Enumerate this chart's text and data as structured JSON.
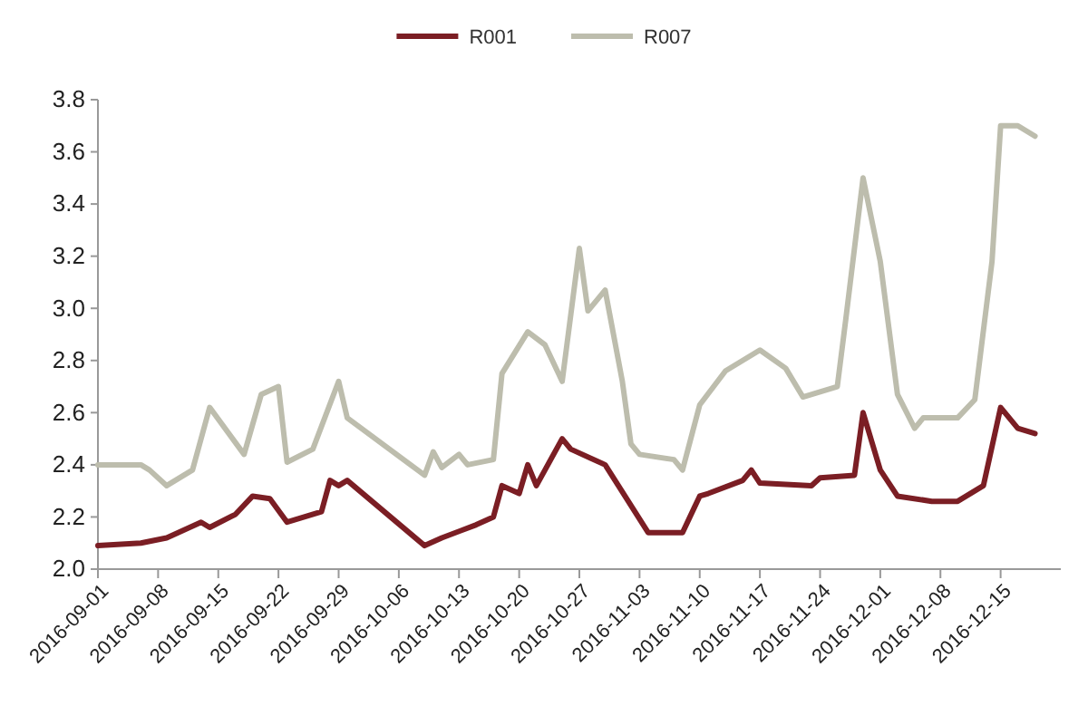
{
  "chart_data": {
    "type": "line",
    "legend": "top",
    "grid": false,
    "marker": "none",
    "line_style": "solid",
    "xlim": [
      "2016-09-01",
      "2016-12-22"
    ],
    "xticks": [
      "2016-09-01",
      "2016-09-08",
      "2016-09-15",
      "2016-09-22",
      "2016-09-29",
      "2016-10-06",
      "2016-10-13",
      "2016-10-20",
      "2016-10-27",
      "2016-11-03",
      "2016-11-10",
      "2016-11-17",
      "2016-11-24",
      "2016-12-01",
      "2016-12-08",
      "2016-12-15"
    ],
    "ylim": [
      2.0,
      3.8
    ],
    "yticks": [
      {
        "value": 2.0,
        "label": "2.0"
      },
      2.2,
      2.4,
      2.6,
      2.8,
      {
        "value": 3.0,
        "label": "3.0"
      },
      3.2,
      3.4,
      3.6,
      3.8
    ],
    "series": [
      {
        "name": "R001",
        "color": "#7b1e24",
        "x": [
          "2016-09-01",
          "2016-09-06",
          "2016-09-09",
          "2016-09-13",
          "2016-09-14",
          "2016-09-17",
          "2016-09-19",
          "2016-09-21",
          "2016-09-23",
          "2016-09-27",
          "2016-09-28",
          "2016-09-29",
          "2016-09-30",
          "2016-10-09",
          "2016-10-11",
          "2016-10-15",
          "2016-10-17",
          "2016-10-18",
          "2016-10-20",
          "2016-10-21",
          "2016-10-22",
          "2016-10-23",
          "2016-10-25",
          "2016-10-26",
          "2016-10-30",
          "2016-11-04",
          "2016-11-08",
          "2016-11-10",
          "2016-11-11",
          "2016-11-15",
          "2016-11-16",
          "2016-11-17",
          "2016-11-23",
          "2016-11-24",
          "2016-11-28",
          "2016-11-29",
          "2016-12-01",
          "2016-12-03",
          "2016-12-07",
          "2016-12-10",
          "2016-12-13",
          "2016-12-15",
          "2016-12-17",
          "2016-12-19"
        ],
        "values": [
          2.09,
          2.1,
          2.12,
          2.18,
          2.16,
          2.21,
          2.28,
          2.27,
          2.18,
          2.22,
          2.34,
          2.32,
          2.34,
          2.09,
          2.12,
          2.17,
          2.2,
          2.32,
          2.29,
          2.4,
          2.32,
          2.38,
          2.5,
          2.46,
          2.4,
          2.14,
          2.14,
          2.28,
          2.29,
          2.34,
          2.38,
          2.33,
          2.32,
          2.35,
          2.36,
          2.6,
          2.38,
          2.28,
          2.26,
          2.26,
          2.32,
          2.62,
          2.54,
          2.52
        ]
      },
      {
        "name": "R007",
        "color": "#bdbdad",
        "x": [
          "2016-09-01",
          "2016-09-06",
          "2016-09-07",
          "2016-09-09",
          "2016-09-12",
          "2016-09-14",
          "2016-09-18",
          "2016-09-20",
          "2016-09-22",
          "2016-09-23",
          "2016-09-26",
          "2016-09-29",
          "2016-09-30",
          "2016-10-09",
          "2016-10-10",
          "2016-10-11",
          "2016-10-13",
          "2016-10-14",
          "2016-10-17",
          "2016-10-18",
          "2016-10-21",
          "2016-10-23",
          "2016-10-25",
          "2016-10-27",
          "2016-10-28",
          "2016-10-30",
          "2016-11-01",
          "2016-11-02",
          "2016-11-03",
          "2016-11-07",
          "2016-11-08",
          "2016-11-10",
          "2016-11-13",
          "2016-11-17",
          "2016-11-20",
          "2016-11-22",
          "2016-11-26",
          "2016-11-27",
          "2016-11-29",
          "2016-12-01",
          "2016-12-03",
          "2016-12-05",
          "2016-12-06",
          "2016-12-10",
          "2016-12-12",
          "2016-12-14",
          "2016-12-15",
          "2016-12-17",
          "2016-12-19"
        ],
        "values": [
          2.4,
          2.4,
          2.38,
          2.32,
          2.38,
          2.62,
          2.44,
          2.67,
          2.7,
          2.41,
          2.46,
          2.72,
          2.58,
          2.36,
          2.45,
          2.39,
          2.44,
          2.4,
          2.42,
          2.75,
          2.91,
          2.86,
          2.72,
          3.23,
          2.99,
          3.07,
          2.72,
          2.48,
          2.44,
          2.42,
          2.38,
          2.63,
          2.76,
          2.84,
          2.77,
          2.66,
          2.7,
          2.96,
          3.5,
          3.18,
          2.67,
          2.54,
          2.58,
          2.58,
          2.65,
          3.18,
          3.7,
          3.7,
          3.66
        ]
      }
    ]
  }
}
